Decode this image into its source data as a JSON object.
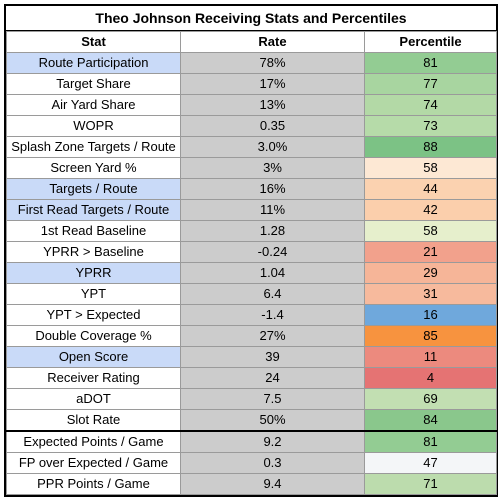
{
  "title": "Theo Johnson Receiving Stats and Percentiles",
  "headers": {
    "stat": "Stat",
    "rate": "Rate",
    "percentile": "Percentile"
  },
  "colors": {
    "highlight_stat": "#c9daf8",
    "rate_bg": "#cccccc"
  },
  "rows": [
    {
      "stat": "Route Participation",
      "rate": "78%",
      "percentile": "81",
      "highlight": true,
      "pct_color": "#93cc93"
    },
    {
      "stat": "Target Share",
      "rate": "17%",
      "percentile": "77",
      "highlight": false,
      "pct_color": "#a8d5a0"
    },
    {
      "stat": "Air Yard Share",
      "rate": "13%",
      "percentile": "74",
      "highlight": false,
      "pct_color": "#b3d9a6"
    },
    {
      "stat": "WOPR",
      "rate": "0.35",
      "percentile": "73",
      "highlight": false,
      "pct_color": "#b6dba9"
    },
    {
      "stat": "Splash Zone Targets / Route",
      "rate": "3.0%",
      "percentile": "88",
      "highlight": false,
      "pct_color": "#7cc285"
    },
    {
      "stat": "Screen Yard %",
      "rate": "3%",
      "percentile": "58",
      "highlight": false,
      "pct_color": "#fde8d4"
    },
    {
      "stat": "Targets / Route",
      "rate": "16%",
      "percentile": "44",
      "highlight": true,
      "pct_color": "#fbd2b0"
    },
    {
      "stat": "First Read Targets / Route",
      "rate": "11%",
      "percentile": "42",
      "highlight": true,
      "pct_color": "#fbcfac"
    },
    {
      "stat": "1st Read Baseline",
      "rate": "1.28",
      "percentile": "58",
      "highlight": false,
      "pct_color": "#e6efcc"
    },
    {
      "stat": "YPRR > Baseline",
      "rate": "-0.24",
      "percentile": "21",
      "highlight": false,
      "pct_color": "#f2a18c"
    },
    {
      "stat": "YPRR",
      "rate": "1.04",
      "percentile": "29",
      "highlight": true,
      "pct_color": "#f6b598"
    },
    {
      "stat": "YPT",
      "rate": "6.4",
      "percentile": "31",
      "highlight": false,
      "pct_color": "#f7ba9d"
    },
    {
      "stat": "YPT > Expected",
      "rate": "-1.4",
      "percentile": "16",
      "highlight": false,
      "pct_color": "#6fa8dc"
    },
    {
      "stat": "Double Coverage %",
      "rate": "27%",
      "percentile": "85",
      "highlight": false,
      "pct_color": "#f7933f"
    },
    {
      "stat": "Open Score",
      "rate": "39",
      "percentile": "11",
      "highlight": true,
      "pct_color": "#ec8a7e"
    },
    {
      "stat": "Receiver Rating",
      "rate": "24",
      "percentile": "4",
      "highlight": false,
      "pct_color": "#e57373"
    },
    {
      "stat": "aDOT",
      "rate": "7.5",
      "percentile": "69",
      "highlight": false,
      "pct_color": "#c2dfb2"
    },
    {
      "stat": "Slot Rate",
      "rate": "50%",
      "percentile": "84",
      "highlight": false,
      "pct_color": "#8ac78c"
    },
    {
      "stat": "Expected Points / Game",
      "rate": "9.2",
      "percentile": "81",
      "highlight": false,
      "pct_color": "#93cc93"
    },
    {
      "stat": "FP over Expected / Game",
      "rate": "0.3",
      "percentile": "47",
      "highlight": false,
      "pct_color": "#f4f6f8"
    },
    {
      "stat": "PPR Points / Game",
      "rate": "9.4",
      "percentile": "71",
      "highlight": false,
      "pct_color": "#bcdcad"
    }
  ]
}
